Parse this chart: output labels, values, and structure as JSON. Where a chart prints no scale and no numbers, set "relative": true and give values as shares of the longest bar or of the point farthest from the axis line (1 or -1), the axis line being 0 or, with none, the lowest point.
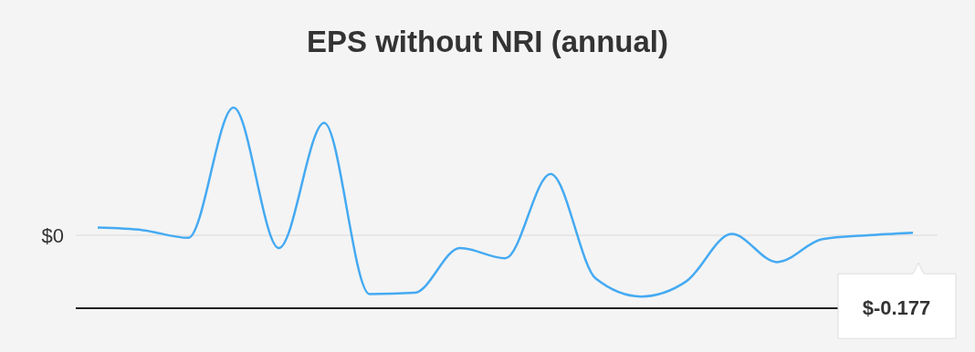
{
  "chart_data": {
    "type": "line",
    "title": "EPS without NRI (annual)",
    "relative": true,
    "categories": [
      null,
      null,
      null,
      null,
      null,
      null,
      null,
      null,
      null,
      null,
      null,
      null,
      null,
      null,
      null,
      null,
      null,
      null,
      null
    ],
    "series": [
      {
        "color": "#45aaf2",
        "values": [
          0.06,
          0.04,
          -0.02,
          1,
          -0.1,
          0.88,
          -0.46,
          -0.45,
          -0.1,
          -0.18,
          0.48,
          -0.34,
          -0.48,
          -0.36,
          0.01,
          -0.21,
          -0.03,
          0,
          0.02
        ]
      }
    ],
    "ref_lines": [
      {
        "axis": "y",
        "value": 0,
        "label": "$0",
        "color": "#e3e3e3"
      }
    ],
    "annotations": [
      "$-0.177"
    ],
    "marker": "none",
    "line_style": "solid"
  }
}
